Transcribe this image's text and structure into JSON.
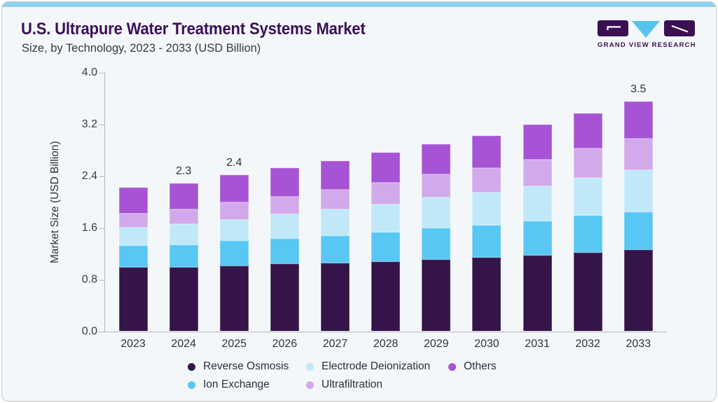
{
  "page": {
    "title": "U.S. Ultrapure Water Treatment Systems Market",
    "subtitle": "Size, by Technology, 2023 - 2033 (USD Billion)",
    "brand": "GRAND VIEW RESEARCH"
  },
  "colors": {
    "accent_strip": "#8cd2f0",
    "brand_purple": "#3b1053",
    "brand_cyan": "#57c4ee",
    "card_background": "#f3f7fa",
    "axis": "#b6b6be"
  },
  "chart_data": {
    "type": "bar",
    "stacked": true,
    "title": "U.S. Ultrapure Water Treatment Systems Market",
    "subtitle": "Size, by Technology, 2023 - 2033 (USD Billion)",
    "xlabel": "",
    "ylabel": "Market Size (USD Billion)",
    "ylim": [
      0,
      4.0
    ],
    "yticks": [
      "0.0",
      "0.8",
      "1.6",
      "2.4",
      "3.2",
      "4.0"
    ],
    "grid": false,
    "legend_position": "bottom",
    "categories": [
      "2023",
      "2024",
      "2025",
      "2026",
      "2027",
      "2028",
      "2029",
      "2030",
      "2031",
      "2032",
      "2033"
    ],
    "series": [
      {
        "name": "Reverse Osmosis",
        "color": "#341449",
        "values": [
          0.98,
          0.98,
          1.01,
          1.04,
          1.05,
          1.07,
          1.1,
          1.13,
          1.17,
          1.21,
          1.25
        ]
      },
      {
        "name": "Ion Exchange",
        "color": "#58c7f3",
        "values": [
          0.34,
          0.35,
          0.39,
          0.39,
          0.42,
          0.45,
          0.49,
          0.5,
          0.53,
          0.57,
          0.59
        ]
      },
      {
        "name": "Electrode Deionization",
        "color": "#c1e8f9",
        "values": [
          0.28,
          0.32,
          0.32,
          0.38,
          0.41,
          0.44,
          0.48,
          0.51,
          0.54,
          0.59,
          0.65
        ]
      },
      {
        "name": "Ultrafiltration",
        "color": "#d2a9ea",
        "values": [
          0.22,
          0.23,
          0.27,
          0.27,
          0.3,
          0.33,
          0.35,
          0.38,
          0.41,
          0.45,
          0.48
        ]
      },
      {
        "name": "Others",
        "color": "#a653d6",
        "values": [
          0.4,
          0.4,
          0.42,
          0.44,
          0.45,
          0.47,
          0.47,
          0.5,
          0.54,
          0.54,
          0.58
        ]
      }
    ],
    "totals": [
      2.22,
      2.28,
      2.41,
      2.52,
      2.63,
      2.76,
      2.89,
      3.02,
      3.19,
      3.36,
      3.55
    ],
    "data_labels": {
      "2024": "2.3",
      "2025": "2.4",
      "2033": "3.5"
    }
  }
}
